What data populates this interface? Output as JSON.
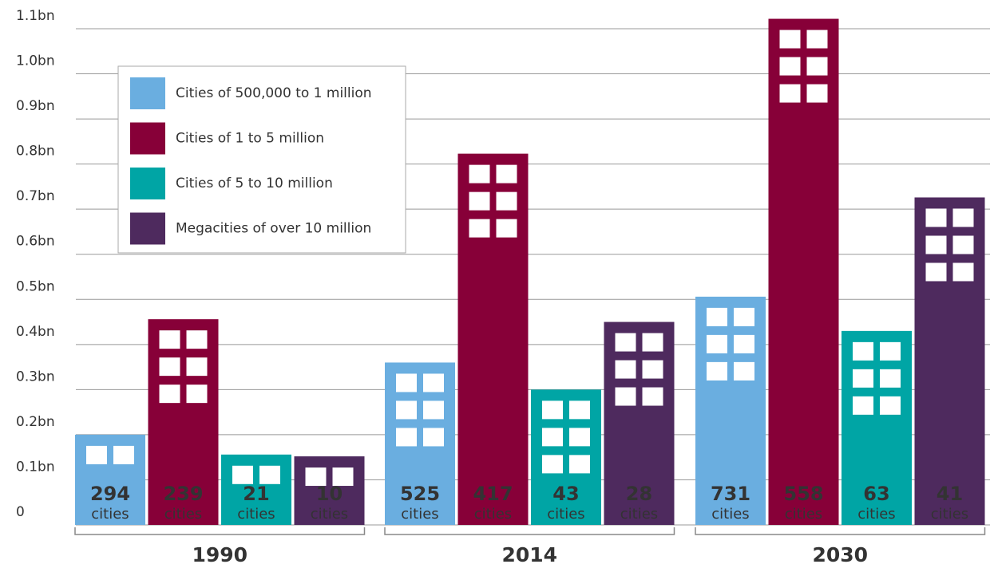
{
  "chart_data": {
    "type": "bar",
    "categories": [
      "1990",
      "2014",
      "2030"
    ],
    "count_unit": "cities",
    "series": [
      {
        "name": "Cities of 500,000 to 1 million",
        "color": "#6aaee0",
        "values": [
          0.2,
          0.36,
          0.506
        ],
        "city_counts": [
          "294",
          "525",
          "731"
        ]
      },
      {
        "name": "Cities of 1 to 5 million",
        "color": "#870038",
        "values": [
          0.456,
          0.823,
          1.122
        ],
        "city_counts": [
          "239",
          "417",
          "558"
        ]
      },
      {
        "name": "Cities of 5 to 10 million",
        "color": "#00a5a5",
        "values": [
          0.156,
          0.3,
          0.43
        ],
        "city_counts": [
          "21",
          "43",
          "63"
        ]
      },
      {
        "name": "Megacities of over 10 million",
        "color": "#4e2a5e",
        "values": [
          0.152,
          0.45,
          0.726
        ],
        "city_counts": [
          "10",
          "28",
          "41"
        ]
      }
    ],
    "ylim": [
      0,
      1.1
    ],
    "yticks": [
      0,
      {
        "value": 0.1,
        "label": "0.1bn"
      },
      {
        "value": 0.2,
        "label": "0.2bn"
      },
      {
        "value": 0.3,
        "label": "0.3bn"
      },
      {
        "value": 0.4,
        "label": "0.4bn"
      },
      {
        "value": 0.5,
        "label": "0.5bn"
      },
      {
        "value": 0.6,
        "label": "0.6bn"
      },
      {
        "value": 0.7,
        "label": "0.7bn"
      },
      {
        "value": 0.8,
        "label": "0.8bn"
      },
      {
        "value": 0.9,
        "label": "0.9bn"
      },
      {
        "value": 1.0,
        "label": "1.0bn"
      },
      {
        "value": 1.1,
        "label": "1.1bn"
      }
    ],
    "grid": true,
    "legend": "upper left"
  }
}
